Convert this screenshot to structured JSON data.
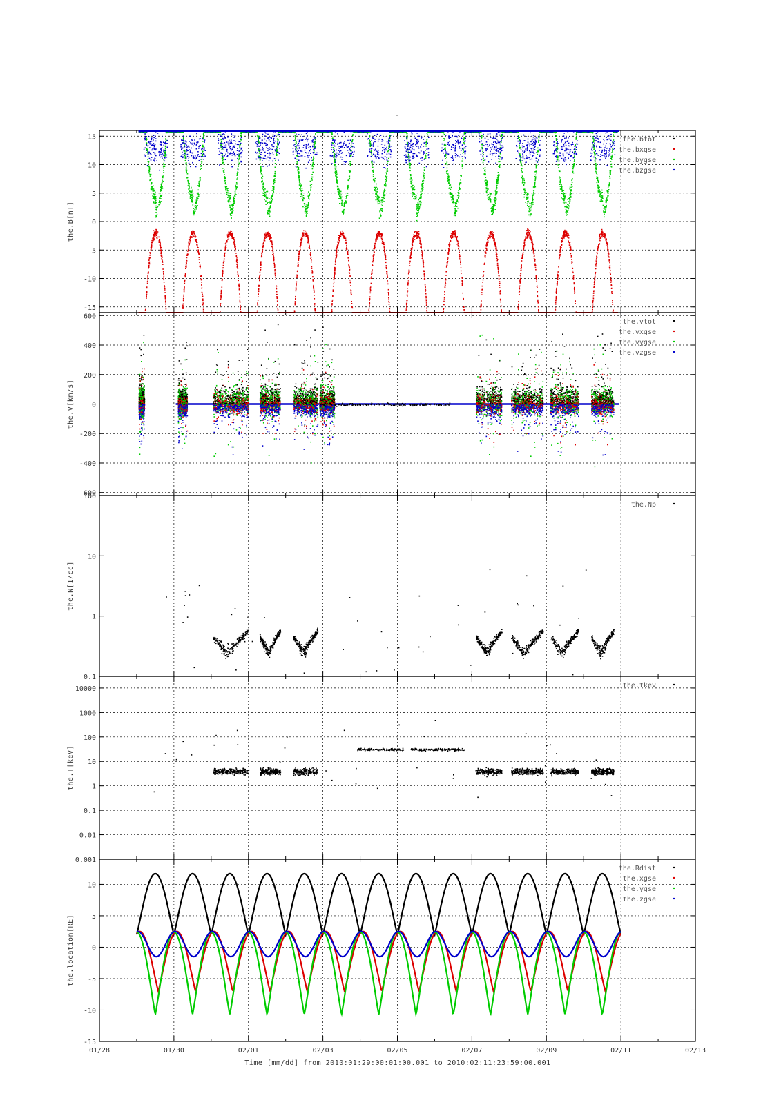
{
  "page": {
    "top_mark": "-",
    "xlabel": "Time [mm/dd]  from 2010:01:29:00:01:00.001  to  2010:02:11:23:59:00.001"
  },
  "colors": {
    "black": "#000000",
    "red": "#dd0000",
    "green": "#00cc00",
    "blue": "#0000cc"
  },
  "x_axis": {
    "range_days": [
      0,
      16
    ],
    "tick_labels": [
      "01/28",
      "01/30",
      "02/01",
      "02/03",
      "02/05",
      "02/07",
      "02/09",
      "02/11",
      "02/13"
    ],
    "grid_at_days": [
      2,
      4,
      6,
      8,
      10,
      12,
      14
    ]
  },
  "chart_data": [
    {
      "type": "scatter",
      "ylabel": "the.B[nT]",
      "ylim": [
        -16,
        16
      ],
      "yscale": "linear",
      "yticks": [
        -15,
        -10,
        -5,
        0,
        5,
        10,
        15
      ],
      "ytick_labels": [
        "-15",
        "-10",
        "-5",
        "0",
        "5",
        "10",
        "15"
      ],
      "legend": "top-right",
      "series": [
        {
          "name": "the.btot",
          "color": "#000000"
        },
        {
          "name": "the.bxgse",
          "color": "#dd0000"
        },
        {
          "name": "the.bygse",
          "color": "#00cc00"
        },
        {
          "name": "the.bzgse",
          "color": "#0000cc"
        }
      ]
    },
    {
      "type": "scatter",
      "ylabel": "the.V[km/s]",
      "ylim": [
        -620,
        620
      ],
      "yscale": "linear",
      "yticks": [
        -600,
        -400,
        -200,
        0,
        200,
        400,
        600
      ],
      "ytick_labels": [
        "-600",
        "-400",
        "-200",
        "0",
        "200",
        "400",
        "600"
      ],
      "legend": "top-right",
      "series": [
        {
          "name": "the.vtot",
          "color": "#000000"
        },
        {
          "name": "the.vxgse",
          "color": "#dd0000"
        },
        {
          "name": "the.vygse",
          "color": "#00cc00"
        },
        {
          "name": "the.vzgse",
          "color": "#0000cc"
        }
      ]
    },
    {
      "type": "scatter",
      "ylabel": "the.N[1/cc]",
      "ylim": [
        0.1,
        100
      ],
      "yscale": "log",
      "yticks": [
        0.1,
        1,
        10,
        100
      ],
      "ytick_labels": [
        "0.1",
        "1",
        "10",
        "100"
      ],
      "legend": "top-right",
      "series": [
        {
          "name": "the.Np",
          "color": "#000000"
        }
      ]
    },
    {
      "type": "scatter",
      "ylabel": "the.T[keV]",
      "ylim": [
        0.001,
        30000
      ],
      "yscale": "log",
      "yticks": [
        0.001,
        0.01,
        0.1,
        1,
        10,
        100,
        1000,
        10000
      ],
      "ytick_labels": [
        "0.001",
        "0.01",
        "0.1",
        "1",
        "10",
        "100",
        "1000",
        "10000"
      ],
      "legend": "top-right",
      "series": [
        {
          "name": "the.tkev",
          "color": "#000000"
        }
      ]
    },
    {
      "type": "line",
      "ylabel": "the.location[RE]",
      "ylim": [
        -15,
        14
      ],
      "yscale": "linear",
      "yticks": [
        -15,
        -10,
        -5,
        0,
        5,
        10
      ],
      "ytick_labels": [
        "-15",
        "-10",
        "-5",
        "0",
        "5",
        "10"
      ],
      "legend": "top-right",
      "orbit": {
        "start_day": 1.0,
        "end_day": 14.0,
        "period_days": 1.0,
        "first_apogee_day": 1.5,
        "rdist_range": [
          2.0,
          11.7
        ],
        "xgse_range": [
          -7.0,
          2.5
        ],
        "ygse_range": [
          -10.7,
          2.4
        ],
        "zgse_range": [
          -1.5,
          2.5
        ]
      },
      "series": [
        {
          "name": "the.Rdist",
          "color": "#000000"
        },
        {
          "name": "the.xgse",
          "color": "#dd0000"
        },
        {
          "name": "the.ygse",
          "color": "#00cc00"
        },
        {
          "name": "the.zgse",
          "color": "#0000cc"
        }
      ]
    }
  ]
}
